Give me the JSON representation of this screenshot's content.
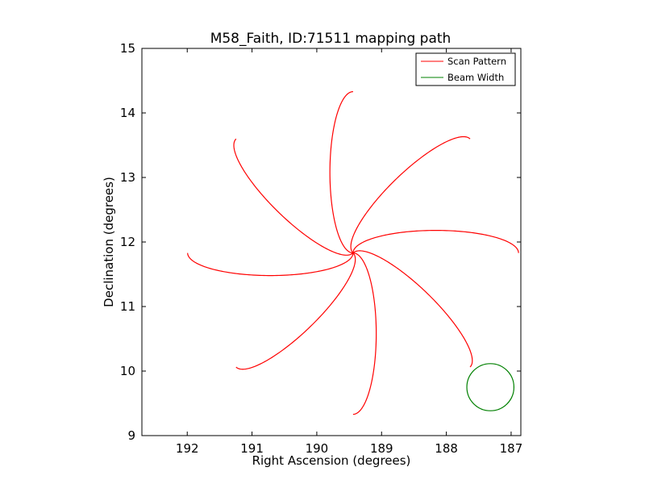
{
  "chart_data": {
    "type": "line",
    "title": "M58_Faith, ID:71511 mapping path",
    "xlabel": "Right Ascension (degrees)",
    "ylabel": "Declination (degrees)",
    "xlim": [
      192.7,
      186.85
    ],
    "ylim": [
      9,
      15
    ],
    "x_ticks": [
      192,
      191,
      190,
      189,
      188,
      187
    ],
    "y_ticks": [
      9,
      10,
      11,
      12,
      13,
      14,
      15
    ],
    "x_tick_labels": [
      "192",
      "191",
      "190",
      "189",
      "188",
      "187"
    ],
    "y_tick_labels": [
      "9",
      "10",
      "11",
      "12",
      "13",
      "14",
      "15"
    ],
    "grid": false,
    "legend_position": "top-right",
    "series": [
      {
        "name": "Scan Pattern",
        "color": "#ff0000",
        "center": [
          189.44,
          11.83
        ],
        "petals": 8,
        "petal_length_deg": 2.5,
        "petal_half_width_deg": 0.35
      },
      {
        "name": "Beam Width",
        "color": "#008000",
        "center": [
          187.32,
          9.75
        ],
        "radius_deg": 0.365
      }
    ]
  }
}
